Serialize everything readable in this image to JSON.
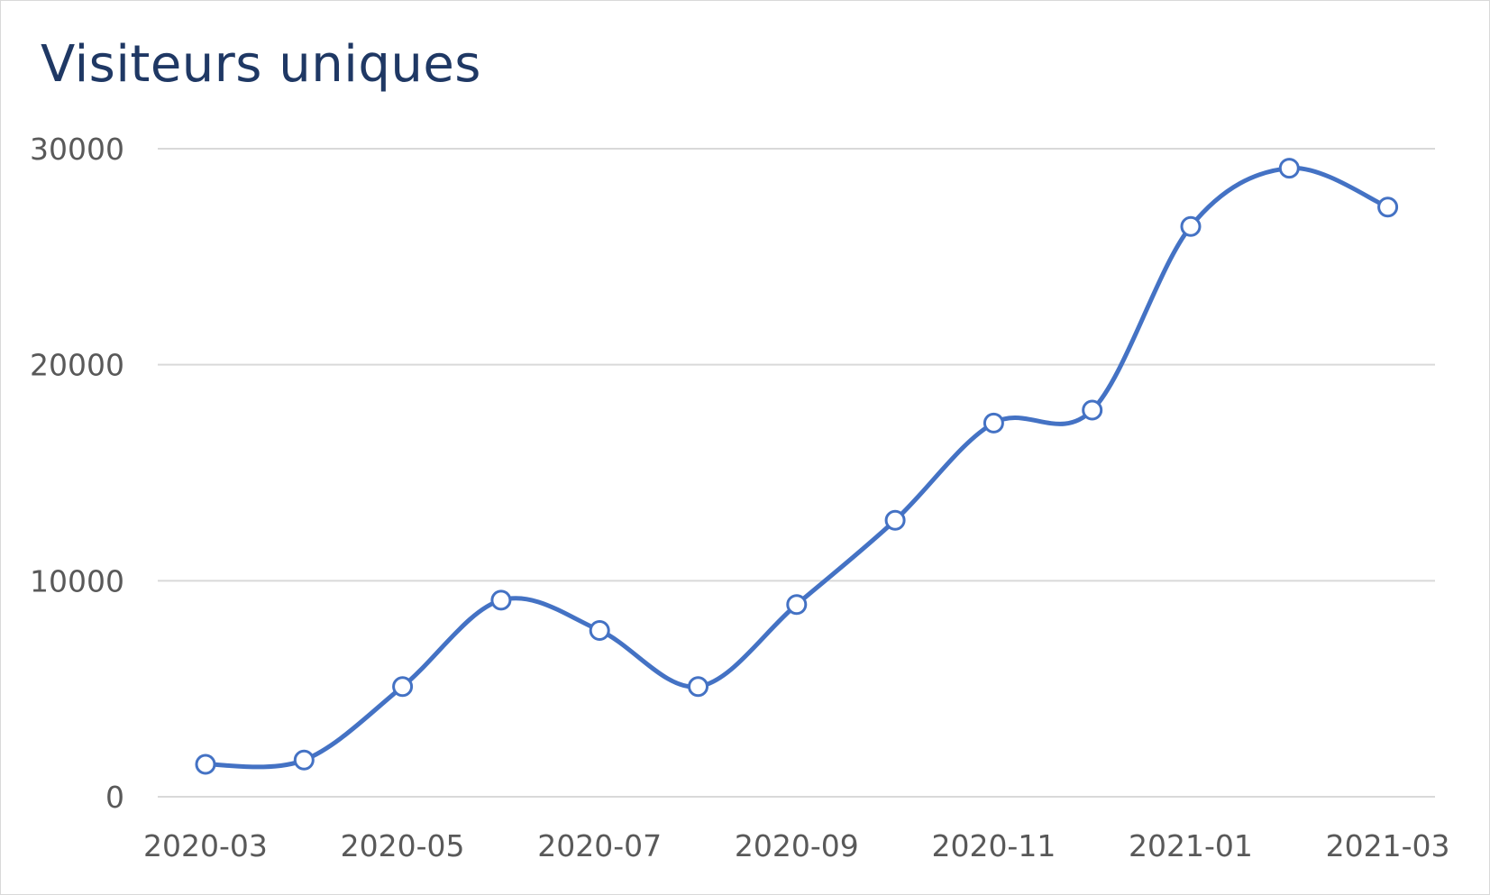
{
  "chart_data": {
    "type": "line",
    "title": "Visiteurs uniques",
    "xlabel": "",
    "ylabel": "",
    "x": [
      "2020-03",
      "2020-04",
      "2020-05",
      "2020-06",
      "2020-07",
      "2020-08",
      "2020-09",
      "2020-10",
      "2020-11",
      "2020-12",
      "2021-01",
      "2021-02",
      "2021-03"
    ],
    "x_tick_labels": [
      "2020-03",
      "2020-05",
      "2020-07",
      "2020-09",
      "2020-11",
      "2021-01",
      "2021-03"
    ],
    "y_ticks": [
      0,
      10000,
      20000,
      30000
    ],
    "ylim": [
      0,
      30000
    ],
    "grid": "horizontal",
    "legend": "none",
    "series": [
      {
        "values": [
          1500,
          1700,
          5100,
          9100,
          7700,
          5100,
          8900,
          12800,
          17300,
          17900,
          26400,
          29100,
          27300
        ],
        "color": "#4472c4",
        "marker": "circle-open",
        "smooth": true
      }
    ]
  }
}
